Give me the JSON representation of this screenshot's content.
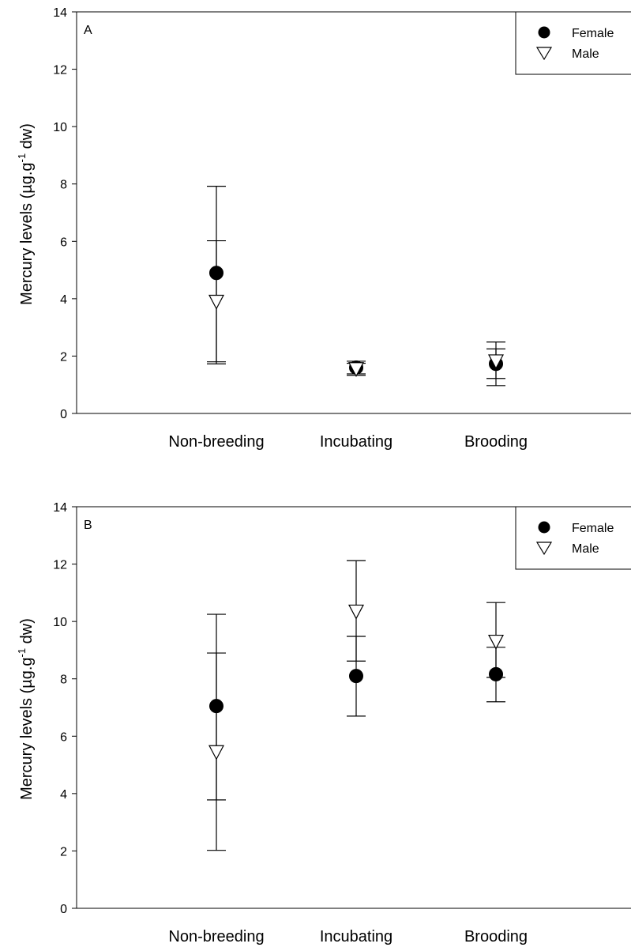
{
  "chart_data": [
    {
      "type": "scatter",
      "panel_label": "A",
      "categories": [
        "Non-breeding",
        "Incubating",
        "Brooding"
      ],
      "ylabel": "Mercury levels (µg.g-1 dw)",
      "ylim": [
        0,
        14
      ],
      "yticks": [
        0,
        2,
        4,
        6,
        8,
        10,
        12,
        14
      ],
      "legend_position": "top-right",
      "series": [
        {
          "name": "Female",
          "marker": "filled-circle",
          "values": [
            4.9,
            1.6,
            1.73
          ],
          "err_low": [
            1.8,
            1.38,
            1.22
          ],
          "err_high": [
            7.92,
            1.82,
            2.25
          ]
        },
        {
          "name": "Male",
          "marker": "open-triangle-down",
          "values": [
            3.9,
            1.55,
            1.82
          ],
          "err_low": [
            1.73,
            1.33,
            0.97
          ],
          "err_high": [
            6.02,
            1.75,
            2.49
          ]
        }
      ]
    },
    {
      "type": "scatter",
      "panel_label": "B",
      "categories": [
        "Non-breeding",
        "Incubating",
        "Brooding"
      ],
      "ylabel": "Mercury levels (µg.g-1 dw)",
      "ylim": [
        0,
        14
      ],
      "yticks": [
        0,
        2,
        4,
        6,
        8,
        10,
        12,
        14
      ],
      "legend_position": "top-right",
      "series": [
        {
          "name": "Female",
          "marker": "filled-circle",
          "values": [
            7.05,
            8.1,
            8.16
          ],
          "err_low": [
            3.78,
            6.7,
            7.2
          ],
          "err_high": [
            10.25,
            9.48,
            9.1
          ]
        },
        {
          "name": "Male",
          "marker": "open-triangle-down",
          "values": [
            5.45,
            10.35,
            9.3
          ],
          "err_low": [
            2.02,
            8.62,
            8.05
          ],
          "err_high": [
            8.9,
            12.12,
            10.66
          ]
        }
      ]
    }
  ]
}
